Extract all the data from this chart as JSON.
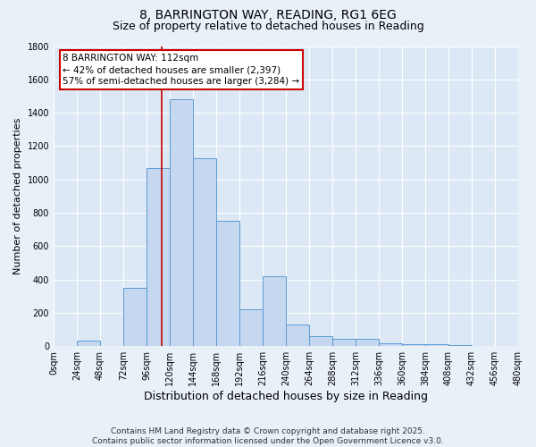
{
  "title1": "8, BARRINGTON WAY, READING, RG1 6EG",
  "title2": "Size of property relative to detached houses in Reading",
  "xlabel": "Distribution of detached houses by size in Reading",
  "ylabel": "Number of detached properties",
  "bin_edges": [
    0,
    24,
    48,
    72,
    96,
    120,
    144,
    168,
    192,
    216,
    240,
    264,
    288,
    312,
    336,
    360,
    384,
    408,
    432,
    456,
    480
  ],
  "bar_heights": [
    2,
    35,
    3,
    350,
    1070,
    1480,
    1130,
    750,
    220,
    420,
    130,
    60,
    45,
    45,
    20,
    15,
    10,
    5,
    3,
    1
  ],
  "bar_color": "#c5d8f0",
  "bar_edge_color": "#5b9bd5",
  "bg_color": "#dce8f5",
  "grid_color": "#ffffff",
  "fig_bg_color": "#e8f0f8",
  "red_line_x": 112,
  "annotation_text": "8 BARRINGTON WAY: 112sqm\n← 42% of detached houses are smaller (2,397)\n57% of semi-detached houses are larger (3,284) →",
  "annotation_box_color": "#cc0000",
  "ylim": [
    0,
    1800
  ],
  "yticks": [
    0,
    200,
    400,
    600,
    800,
    1000,
    1200,
    1400,
    1600,
    1800
  ],
  "xtick_labels": [
    "0sqm",
    "24sqm",
    "48sqm",
    "72sqm",
    "96sqm",
    "120sqm",
    "144sqm",
    "168sqm",
    "192sqm",
    "216sqm",
    "240sqm",
    "264sqm",
    "288sqm",
    "312sqm",
    "336sqm",
    "360sqm",
    "384sqm",
    "408sqm",
    "432sqm",
    "456sqm",
    "480sqm"
  ],
  "footer_text": "Contains HM Land Registry data © Crown copyright and database right 2025.\nContains public sector information licensed under the Open Government Licence v3.0.",
  "title1_fontsize": 10,
  "title2_fontsize": 9,
  "xlabel_fontsize": 9,
  "ylabel_fontsize": 8,
  "tick_fontsize": 7,
  "footer_fontsize": 6.5,
  "annotation_fontsize": 7.5
}
